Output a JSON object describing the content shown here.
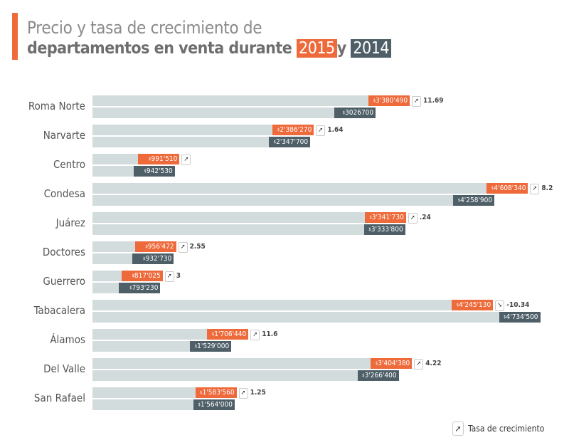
{
  "title": {
    "line1": "Precio y tasa de crecimiento de",
    "line2": "departamentos en venta durante",
    "year1": "2015",
    "connector": "y",
    "year2": "2014"
  },
  "colors": {
    "2015": "#ee6a3b",
    "2014": "#4e5f68",
    "track": "#d3dcdd",
    "accent": "#ee6a3b"
  },
  "legend": {
    "icon": "growth-arrow-icon",
    "label": "Tasa de crecimiento"
  },
  "chart_data": {
    "type": "bar",
    "orientation": "horizontal",
    "categories": [
      "Roma Norte",
      "Narvarte",
      "Centro",
      "Condesa",
      "Juárez",
      "Doctores",
      "Guerrero",
      "Tabacalera",
      "Álamos",
      "Del Valle",
      "San Rafael"
    ],
    "series": [
      {
        "name": "2015",
        "values": [
          3380490,
          2386270,
          991510,
          4608340,
          3341730,
          956472,
          817025,
          4245130,
          1706440,
          3404380,
          1583560
        ],
        "labels": [
          "3'380'490",
          "2'386'270",
          "991'510",
          "4'608'340",
          "3'341'730",
          "956'472",
          "817'025",
          "4'245'130",
          "1'706'440",
          "3'404'380",
          "1'583'560"
        ]
      },
      {
        "name": "2014",
        "values": [
          3026700,
          2347700,
          942530,
          4258900,
          3333800,
          932730,
          793230,
          4734500,
          1529000,
          3266400,
          1564000
        ],
        "labels": [
          "3026700",
          "2'347'700",
          "942'530",
          "4'258'900",
          "3'333'800",
          "932'730",
          "793'230",
          "4'734'500",
          "1'529'000",
          "3'266'400",
          "1'564'000"
        ]
      }
    ],
    "growth": [
      "11.69",
      "1.64",
      "",
      "8.2",
      ".24",
      "2.55",
      "3",
      "-10.34",
      "11.6",
      "4.22",
      "1.25"
    ],
    "currency_symbol": "$",
    "grid": false
  }
}
